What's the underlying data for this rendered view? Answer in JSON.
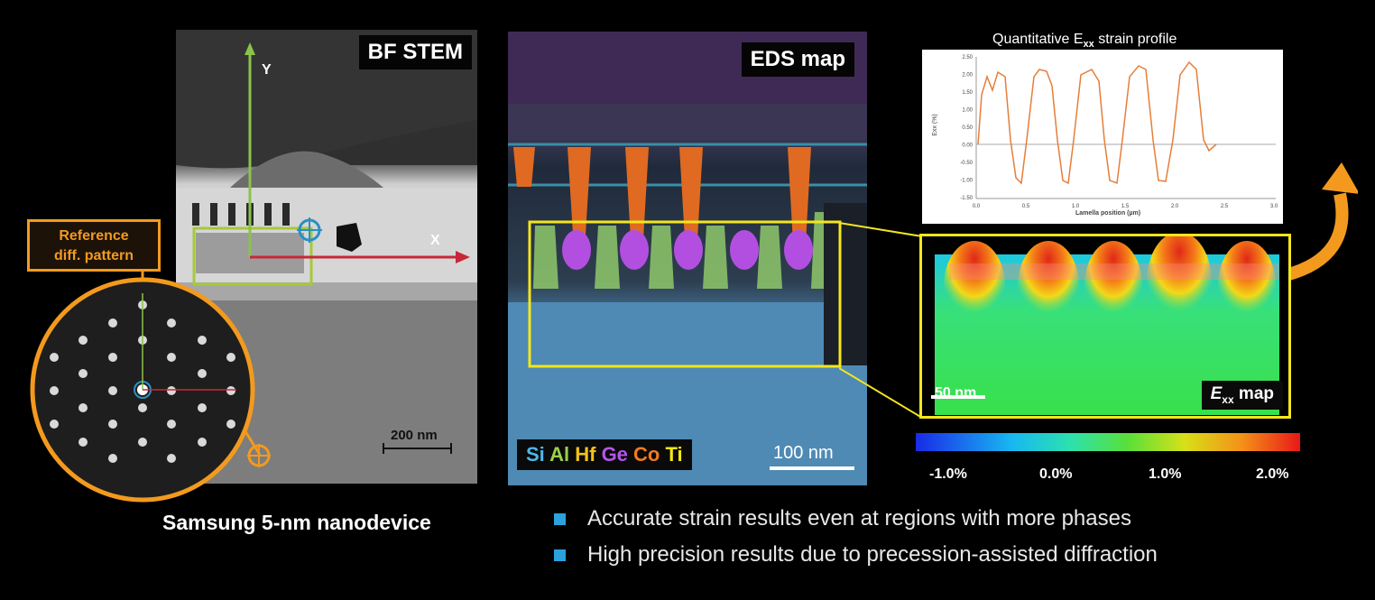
{
  "bf_panel": {
    "label": "BF STEM",
    "axis_y": "Y",
    "axis_x": "X",
    "scale": "200 nm"
  },
  "eds_panel": {
    "label": "EDS map",
    "scale": "100 nm",
    "elements": [
      {
        "symbol": "Si",
        "color": "#4fb6e8"
      },
      {
        "symbol": "Al",
        "color": "#9ad14a"
      },
      {
        "symbol": "Hf",
        "color": "#f2c318"
      },
      {
        "symbol": "Ge",
        "color": "#b455e8"
      },
      {
        "symbol": "Co",
        "color": "#f07a1e"
      },
      {
        "symbol": "Ti",
        "color": "#f5e614"
      }
    ]
  },
  "reference": {
    "label_line1": "Reference",
    "label_line2": "diff. pattern",
    "color": "#f39a1e"
  },
  "device_caption": "Samsung 5-nm nanodevice",
  "profile": {
    "title_pre": "Quantitative E",
    "title_sub": "xx",
    "title_post": " strain profile",
    "ylabel": "Exx (%)",
    "xlabel": "Lamella position (µm)",
    "y_ticks": [
      "2.50",
      "2.00",
      "1.50",
      "1.00",
      "0.50",
      "0.00",
      "-0.50",
      "-1.00",
      "-1.50"
    ],
    "x_ticks": [
      "0.0",
      "0.5",
      "1.0",
      "1.5",
      "2.0",
      "2.5",
      "3.0"
    ]
  },
  "emap": {
    "scale": "50 nm",
    "label_pre": "E",
    "label_sub": "xx",
    "label_post": " map"
  },
  "colorbar": {
    "ticks": [
      "-1.0%",
      "0.0%",
      "1.0%",
      "2.0%"
    ]
  },
  "bullets": [
    "Accurate strain results even at regions with more phases",
    "High precision results due to precession-assisted diffraction"
  ],
  "colors": {
    "highlight_yellow": "#f4e61c",
    "accent_orange": "#f39a1e",
    "bullet_blue": "#2aa3dc",
    "axis_green": "#8bc34a",
    "axis_red": "#c62838"
  }
}
